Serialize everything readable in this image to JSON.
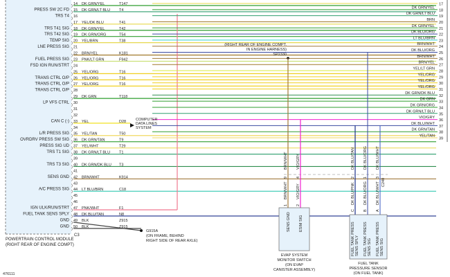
{
  "figure_id": "476111",
  "pcm": {
    "name_line1": "POWERTRAIN CONTROL MODULE",
    "name_line2": "(RIGHT REAR OF ENGINE COMPT)",
    "connector": "C3",
    "pins": [
      {
        "pin": "14",
        "func": "",
        "wire": "DK GRN/YEL",
        "circuit": "T147",
        "color": "#2e9e2e"
      },
      {
        "pin": "15",
        "func": "PRESS SW 2C FD",
        "wire": "DK GRN/LT BLU",
        "circuit": "T4",
        "color": "#2e9e6e"
      },
      {
        "pin": "16",
        "func": "TRS T4",
        "wire": "",
        "circuit": "",
        "color": ""
      },
      {
        "pin": "17",
        "func": "",
        "wire": "YEL/DK BLU",
        "circuit": "T41",
        "color": "#e6d84a"
      },
      {
        "pin": "18",
        "func": "TRS T41 SIG",
        "wire": "DK GRN/YEL",
        "circuit": "T42",
        "color": "#2e9e2e"
      },
      {
        "pin": "19",
        "func": "TRS T42 SIG",
        "wire": "DK GRN/ORG",
        "circuit": "T54",
        "color": "#2e9e2e"
      },
      {
        "pin": "20",
        "func": "TEMP SIG",
        "wire": "YEL/BRN",
        "circuit": "T38",
        "color": "#e6d84a"
      },
      {
        "pin": "21",
        "func": "LNE PRESS SIG",
        "wire": "",
        "circuit": "",
        "color": ""
      },
      {
        "pin": "22",
        "func": "",
        "wire": "BRN/YEL",
        "circuit": "K181",
        "color": "#a0782a"
      },
      {
        "pin": "23",
        "func": "FUEL PRESS SIG",
        "wire": "PNK/LT GRN",
        "circuit": "F942",
        "color": "#c8e070"
      },
      {
        "pin": "24",
        "func": "FSD IGN RUN/STRT",
        "wire": "",
        "circuit": "",
        "color": ""
      },
      {
        "pin": "25",
        "func": "",
        "wire": "YEL/ORG",
        "circuit": "T16",
        "color": "#f0d020"
      },
      {
        "pin": "26",
        "func": "TRANS CTRL O/P",
        "wire": "YEL/ORG",
        "circuit": "T16",
        "color": "#f0d020"
      },
      {
        "pin": "27",
        "func": "TRANS CTRL O/P",
        "wire": "YEL/ORG",
        "circuit": "T16",
        "color": "#f0d020"
      },
      {
        "pin": "28",
        "func": "TRANS CTRL O/P",
        "wire": "",
        "circuit": "",
        "color": ""
      },
      {
        "pin": "29",
        "func": "",
        "wire": "DK GRN",
        "circuit": "T118",
        "color": "#2e9e2e"
      },
      {
        "pin": "30",
        "func": "LP VFS CTRL",
        "wire": "",
        "circuit": "",
        "color": ""
      },
      {
        "pin": "31",
        "func": "",
        "wire": "",
        "circuit": "",
        "color": ""
      },
      {
        "pin": "32",
        "func": "",
        "wire": "",
        "circuit": "",
        "color": ""
      },
      {
        "pin": "33",
        "func": "CAN C (-)",
        "wire": "YEL",
        "circuit": "D28",
        "color": "#f0e020"
      },
      {
        "pin": "34",
        "func": "",
        "wire": "",
        "circuit": "",
        "color": ""
      },
      {
        "pin": "35",
        "func": "L/R PRESS SIG",
        "wire": "YEL/TAN",
        "circuit": "T50",
        "color": "#f0d860"
      },
      {
        "pin": "36",
        "func": "OVRDRV PRESS SW SIG",
        "wire": "DK GRN/TAN",
        "circuit": "T9",
        "color": "#2e9e2e"
      },
      {
        "pin": "37",
        "func": "PRESS SIG UD",
        "wire": "YEL/WHT",
        "circuit": "T29",
        "color": "#eee070"
      },
      {
        "pin": "38",
        "func": "TRS T1 SIG",
        "wire": "DK GRN/LT BLU",
        "circuit": "T1",
        "color": "#2e9e6e"
      },
      {
        "pin": "39",
        "func": "",
        "wire": "",
        "circuit": "",
        "color": ""
      },
      {
        "pin": "40",
        "func": "TRS T3 SIG",
        "wire": "DK GRN/DK BLU",
        "circuit": "T3",
        "color": "#2e8e4e"
      },
      {
        "pin": "41",
        "func": "",
        "wire": "",
        "circuit": "",
        "color": ""
      },
      {
        "pin": "42",
        "func": "SENS GND",
        "wire": "BRN/WHT",
        "circuit": "K914",
        "color": "#a0783a"
      },
      {
        "pin": "43",
        "func": "",
        "wire": "",
        "circuit": "",
        "color": ""
      },
      {
        "pin": "44",
        "func": "A/C PRESS SIG",
        "wire": "LT BLU/BRN",
        "circuit": "C18",
        "color": "#30c8b0"
      },
      {
        "pin": "45",
        "func": "",
        "wire": "",
        "circuit": "",
        "color": ""
      },
      {
        "pin": "46",
        "func": "",
        "wire": "",
        "circuit": "",
        "color": ""
      },
      {
        "pin": "47",
        "func": "IGN ULK/RUN/STRT",
        "wire": "PNK/WHT",
        "circuit": "F1",
        "color": "#f07890"
      },
      {
        "pin": "48",
        "func": "FUEL TANK SENS SPLY",
        "wire": "DK BLU/TAN",
        "circuit": "N8",
        "color": "#1a2e8a"
      },
      {
        "pin": "49",
        "func": "GND",
        "wire": "BLK",
        "circuit": "Z915",
        "color": "#444444"
      },
      {
        "pin": "50",
        "func": "GND",
        "wire": "BLK",
        "circuit": "Z915",
        "color": "#444444"
      }
    ]
  },
  "right_connector": {
    "pins": [
      {
        "pin": "17",
        "wire": "",
        "color": "#e6d84a"
      },
      {
        "pin": "18",
        "wire": "DK GRN/YEL",
        "color": "#2e9e2e"
      },
      {
        "pin": "19",
        "wire": "DK GRN/LT BLU",
        "color": "#2e9e6e"
      },
      {
        "pin": "20",
        "wire": "BRN",
        "color": "#a0782a"
      },
      {
        "pin": "21",
        "wire": "DK GRN/YEL",
        "color": "#2e9e2e"
      },
      {
        "pin": "22",
        "wire": "DK BLU/ORG",
        "color": "#3a4aa0"
      },
      {
        "pin": "23",
        "wire": "LT BLU/BRN",
        "color": "#30d0d0"
      },
      {
        "pin": "24",
        "wire": "BRN/WHT",
        "color": "#a0783a"
      },
      {
        "pin": "25",
        "wire": "DK BLU/ORG",
        "color": "#3a4aa0"
      },
      {
        "pin": "26",
        "wire": "BRN/WHT",
        "color": "#a0783a"
      },
      {
        "pin": "27",
        "wire": "BRN/YEL",
        "color": "#a0782a"
      },
      {
        "pin": "28",
        "wire": "YEL/LT GRN",
        "color": "#d8e840"
      },
      {
        "pin": "29",
        "wire": "YEL/ORG",
        "color": "#f0d020"
      },
      {
        "pin": "30",
        "wire": "YEL/ORG",
        "color": "#f0d020"
      },
      {
        "pin": "31",
        "wire": "YEL/ORG",
        "color": "#f0d020"
      },
      {
        "pin": "32",
        "wire": "DK GRN/DK BLU",
        "color": "#2e8e4e"
      },
      {
        "pin": "33",
        "wire": "DK GRN",
        "color": "#2e9e2e"
      },
      {
        "pin": "34",
        "wire": "DK GRN/ORG",
        "color": "#2e9e2e"
      },
      {
        "pin": "35",
        "wire": "DK GRN/LT BLU",
        "color": "#2e9e6e"
      },
      {
        "pin": "36",
        "wire": "VIO/GRY",
        "color": "#f020d0"
      },
      {
        "pin": "37",
        "wire": "DK BLU/WHT",
        "color": "#3a4aa0"
      },
      {
        "pin": "38",
        "wire": "DK GRN/TAN",
        "color": "#2e9e2e"
      },
      {
        "pin": "39",
        "wire": "YEL/TAN",
        "color": "#f0d860"
      }
    ]
  },
  "splice": {
    "id": "SP2330",
    "note_line1": "(RIGHT REAR OF ENGINE COMPT.",
    "note_line2": "IN ENGINE HARNESS)"
  },
  "data_lines": {
    "line1": "COMPUTER",
    "line2": "DATA LINES",
    "line3": "SYSTEM"
  },
  "ground": {
    "id": "G915A",
    "line1": "(ON FRAME, BEHIND",
    "line2": "RIGHT SIDE OF REAR AXLE)"
  },
  "evap": {
    "title_lines": [
      "EVAP SYSTEM",
      "MONITOR SWITCH",
      "(ON EVAP",
      "CANISTER ASSEMBLY)"
    ],
    "inline": [
      {
        "pin": "9",
        "wire": "BRN/WHT"
      },
      {
        "pin": "4",
        "wire": "VIO/GRY"
      }
    ],
    "pins": [
      {
        "pin": "1",
        "wire": "BRN/WHT",
        "func": "SENS GND"
      },
      {
        "pin": "2",
        "wire": "VIO/GRY",
        "func": "ESIM SIG"
      }
    ]
  },
  "fuel_tank_sensor": {
    "title_lines": [
      "FUEL TANK",
      "PRESSURE SENSOR",
      "(ON FUEL TANK)"
    ],
    "inline": [
      {
        "pin": "2",
        "wire": "DK BLU/TAN"
      },
      {
        "pin": "1",
        "wire": "DK BLU/ORG"
      },
      {
        "pin": "3",
        "wire": "DK BLU/WHT"
      }
    ],
    "inline_connector": "C240",
    "pins": [
      {
        "pin": "C",
        "wire": "DK BLU/PNK",
        "func": "FUEL TANK PRESS SENS SPLY"
      },
      {
        "pin": "B",
        "wire": "DK BLU/ORG",
        "func": "FUEL TANK PRESS SENS SIG"
      },
      {
        "pin": "A",
        "wire": "DK BLU/WHT",
        "func": "FUEL TANK PRESS SENS SIG"
      }
    ]
  }
}
